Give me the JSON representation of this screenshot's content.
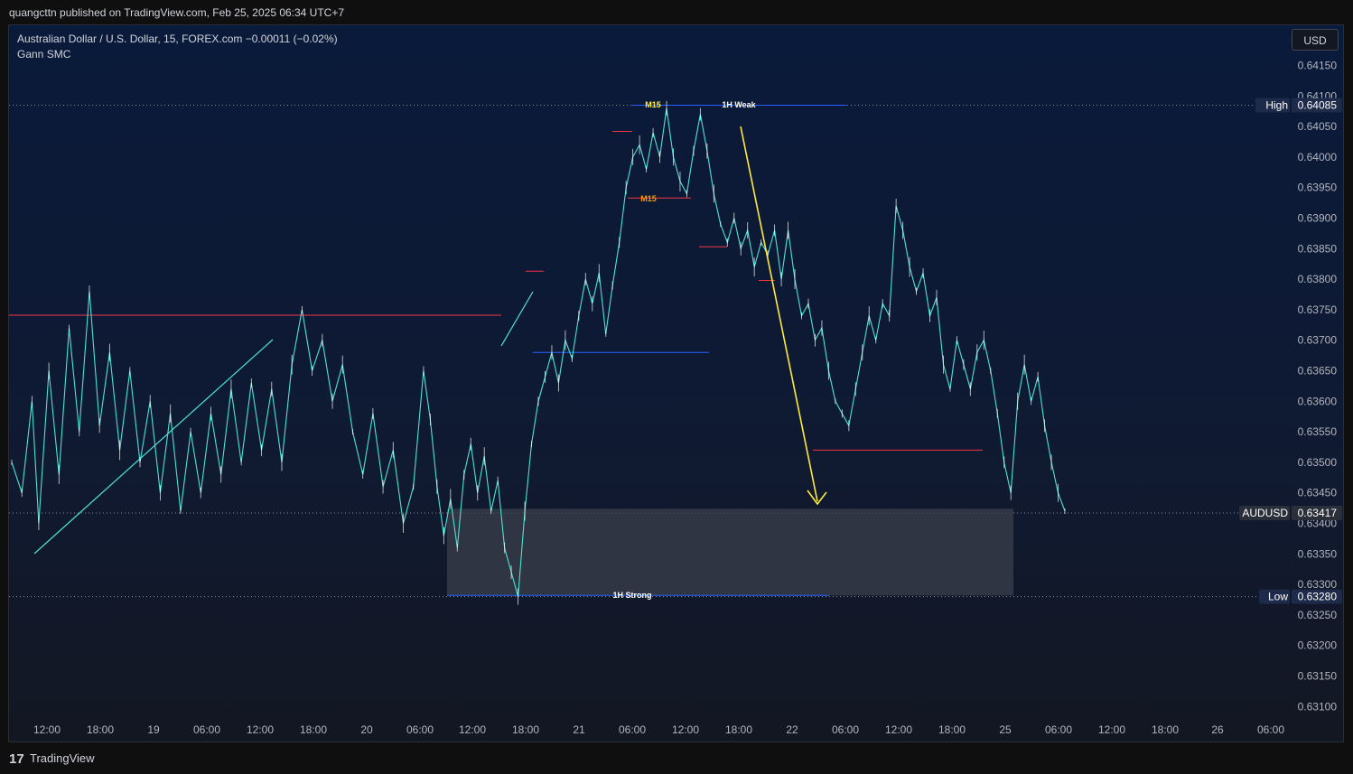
{
  "header": {
    "publisher_text": "quangcttn published on TradingView.com, Feb 25, 2025 06:34 UTC+7"
  },
  "legend": {
    "title": "Australian Dollar / U.S. Dollar, 15, FOREX.com  −0.00011 (−0.02%)",
    "indicator": "Gann SMC"
  },
  "currency_button": "USD",
  "footer": {
    "logo_glyph": "17",
    "brand": "TradingView"
  },
  "colors": {
    "background": "#0c1a33",
    "background_bottom": "#131722",
    "price_line": "#4de3d4",
    "red_level": "#f23645",
    "blue_level": "#2962ff",
    "arrow": "#ffeb3b",
    "zone": "#3a3f4b",
    "label_bg": "#1e2a4a"
  },
  "chart_data": {
    "type": "line",
    "symbol": "AUDUSD",
    "interval": "15",
    "ylim": [
      0.6307,
      0.6418
    ],
    "y_ticks": [
      "0.64150",
      "0.64100",
      "0.64050",
      "0.64000",
      "0.63950",
      "0.63900",
      "0.63850",
      "0.63800",
      "0.63750",
      "0.63700",
      "0.63650",
      "0.63600",
      "0.63550",
      "0.63500",
      "0.63450",
      "0.63400",
      "0.63350",
      "0.63300",
      "0.63250",
      "0.63200",
      "0.63150",
      "0.63100"
    ],
    "x_ticks": [
      "12:00",
      "18:00",
      "19",
      "06:00",
      "12:00",
      "18:00",
      "20",
      "06:00",
      "12:00",
      "18:00",
      "21",
      "06:00",
      "12:00",
      "18:00",
      "22",
      "06:00",
      "12:00",
      "18:00",
      "25",
      "06:00",
      "12:00",
      "18:00",
      "26",
      "06:00"
    ],
    "price_tags": [
      {
        "label": "High",
        "value": "0.64085"
      },
      {
        "label": "AUDUSD",
        "value": "0.63417"
      },
      {
        "label": "Low",
        "value": "0.63280"
      }
    ],
    "annotations": [
      {
        "text": "M15",
        "color": "#ffeb3b"
      },
      {
        "text": "1H Weak",
        "color": "#ffffff"
      },
      {
        "text": "M15",
        "color": "#ff9800"
      },
      {
        "text": "1H Strong",
        "color": "#ffffff"
      }
    ],
    "price_series": [
      [
        0,
        0.635
      ],
      [
        3,
        0.6345
      ],
      [
        6,
        0.636
      ],
      [
        8,
        0.634
      ],
      [
        11,
        0.6365
      ],
      [
        14,
        0.6348
      ],
      [
        17,
        0.6372
      ],
      [
        20,
        0.6355
      ],
      [
        23,
        0.6378
      ],
      [
        26,
        0.6356
      ],
      [
        29,
        0.6368
      ],
      [
        32,
        0.6352
      ],
      [
        35,
        0.6365
      ],
      [
        38,
        0.635
      ],
      [
        41,
        0.636
      ],
      [
        44,
        0.6345
      ],
      [
        47,
        0.6358
      ],
      [
        50,
        0.6342
      ],
      [
        53,
        0.6355
      ],
      [
        56,
        0.6345
      ],
      [
        59,
        0.6358
      ],
      [
        62,
        0.6348
      ],
      [
        65,
        0.6362
      ],
      [
        68,
        0.635
      ],
      [
        71,
        0.6363
      ],
      [
        74,
        0.6352
      ],
      [
        77,
        0.6362
      ],
      [
        80,
        0.635
      ],
      [
        83,
        0.6366
      ],
      [
        86,
        0.6375
      ],
      [
        89,
        0.6365
      ],
      [
        92,
        0.637
      ],
      [
        95,
        0.636
      ],
      [
        98,
        0.6366
      ],
      [
        101,
        0.6355
      ],
      [
        104,
        0.6348
      ],
      [
        107,
        0.6358
      ],
      [
        110,
        0.6346
      ],
      [
        113,
        0.6352
      ],
      [
        116,
        0.634
      ],
      [
        119,
        0.6346
      ],
      [
        122,
        0.6365
      ],
      [
        124,
        0.6357
      ],
      [
        126,
        0.6346
      ],
      [
        128,
        0.6338
      ],
      [
        130,
        0.6344
      ],
      [
        132,
        0.6336
      ],
      [
        134,
        0.6348
      ],
      [
        136,
        0.6353
      ],
      [
        138,
        0.6345
      ],
      [
        140,
        0.6351
      ],
      [
        142,
        0.6342
      ],
      [
        144,
        0.6347
      ],
      [
        146,
        0.6336
      ],
      [
        148,
        0.6332
      ],
      [
        150,
        0.6328
      ],
      [
        152,
        0.6342
      ],
      [
        154,
        0.6353
      ],
      [
        156,
        0.636
      ],
      [
        158,
        0.6364
      ],
      [
        160,
        0.6368
      ],
      [
        162,
        0.6363
      ],
      [
        164,
        0.637
      ],
      [
        166,
        0.6367
      ],
      [
        168,
        0.6374
      ],
      [
        170,
        0.638
      ],
      [
        172,
        0.6376
      ],
      [
        174,
        0.6381
      ],
      [
        176,
        0.6371
      ],
      [
        178,
        0.6379
      ],
      [
        180,
        0.6386
      ],
      [
        182,
        0.6395
      ],
      [
        184,
        0.64
      ],
      [
        186,
        0.6402
      ],
      [
        188,
        0.6398
      ],
      [
        190,
        0.6404
      ],
      [
        192,
        0.64
      ],
      [
        194,
        0.6408
      ],
      [
        196,
        0.64
      ],
      [
        198,
        0.6396
      ],
      [
        200,
        0.6394
      ],
      [
        202,
        0.6401
      ],
      [
        204,
        0.6407
      ],
      [
        206,
        0.6401
      ],
      [
        208,
        0.6394
      ],
      [
        210,
        0.6389
      ],
      [
        212,
        0.6386
      ],
      [
        214,
        0.639
      ],
      [
        216,
        0.6385
      ],
      [
        218,
        0.6388
      ],
      [
        220,
        0.6382
      ],
      [
        222,
        0.6386
      ],
      [
        224,
        0.6384
      ],
      [
        226,
        0.6388
      ],
      [
        228,
        0.638
      ],
      [
        230,
        0.6388
      ],
      [
        232,
        0.638
      ],
      [
        234,
        0.6374
      ],
      [
        236,
        0.6376
      ],
      [
        238,
        0.637
      ],
      [
        240,
        0.6372
      ],
      [
        242,
        0.6365
      ],
      [
        244,
        0.636
      ],
      [
        246,
        0.6358
      ],
      [
        248,
        0.6356
      ],
      [
        250,
        0.6362
      ],
      [
        252,
        0.6368
      ],
      [
        254,
        0.6374
      ],
      [
        256,
        0.637
      ],
      [
        258,
        0.6376
      ],
      [
        260,
        0.6374
      ],
      [
        262,
        0.6392
      ],
      [
        264,
        0.6388
      ],
      [
        266,
        0.6382
      ],
      [
        268,
        0.6378
      ],
      [
        270,
        0.6381
      ],
      [
        272,
        0.6374
      ],
      [
        274,
        0.6377
      ],
      [
        276,
        0.6366
      ],
      [
        278,
        0.6362
      ],
      [
        280,
        0.637
      ],
      [
        282,
        0.6366
      ],
      [
        284,
        0.6362
      ],
      [
        286,
        0.6368
      ],
      [
        288,
        0.637
      ],
      [
        290,
        0.6365
      ],
      [
        292,
        0.6358
      ],
      [
        294,
        0.635
      ],
      [
        296,
        0.6345
      ],
      [
        298,
        0.636
      ],
      [
        300,
        0.6366
      ],
      [
        302,
        0.636
      ],
      [
        304,
        0.6364
      ],
      [
        306,
        0.6356
      ],
      [
        308,
        0.635
      ],
      [
        310,
        0.6345
      ],
      [
        312,
        0.6342
      ]
    ],
    "ohlc_open_close_sketch": "15-minute candles as thin lines"
  }
}
